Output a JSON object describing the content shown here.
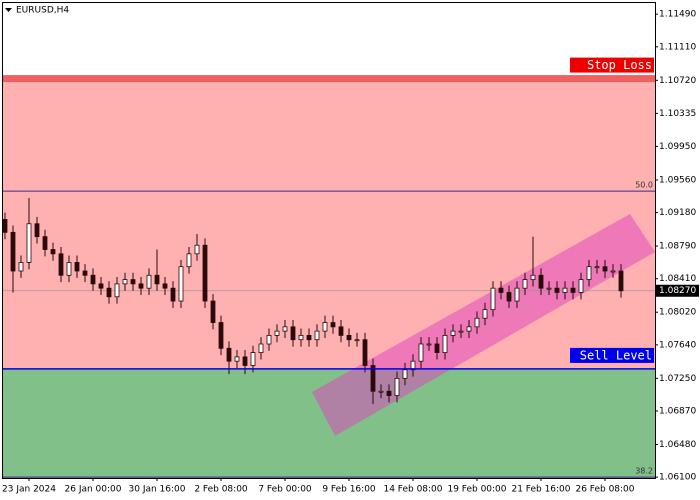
{
  "chart_data": {
    "type": "candlestick",
    "title": "EURUSD,H4",
    "categories": [
      null,
      null,
      null,
      "23 Jan 2024",
      null,
      null,
      null,
      null,
      null,
      null,
      null,
      "26 Jan 00:00",
      null,
      null,
      null,
      null,
      null,
      null,
      null,
      "30 Jan 16:00",
      null,
      null,
      null,
      null,
      null,
      null,
      null,
      "2 Feb 08:00",
      null,
      null,
      null,
      null,
      null,
      null,
      null,
      "7 Feb 00:00",
      null,
      null,
      null,
      null,
      null,
      null,
      null,
      "9 Feb 16:00",
      null,
      null,
      null,
      null,
      null,
      null,
      null,
      "14 Feb 08:00",
      null,
      null,
      null,
      null,
      null,
      null,
      null,
      "19 Feb 00:00",
      null,
      null,
      null,
      null,
      null,
      null,
      null,
      "21 Feb 16:00",
      null,
      null,
      null,
      null,
      null,
      null,
      null,
      "26 Feb 08:00",
      null,
      null
    ],
    "open": [
      1.091,
      1.0895,
      1.085,
      1.086,
      1.0905,
      1.089,
      1.0875,
      1.087,
      1.0845,
      1.086,
      1.085,
      1.0845,
      1.0835,
      1.083,
      1.082,
      1.0835,
      1.084,
      1.0835,
      1.083,
      1.0845,
      1.0835,
      1.083,
      1.0815,
      1.0855,
      1.087,
      1.088,
      1.0815,
      1.079,
      1.076,
      1.0745,
      1.075,
      1.074,
      1.0755,
      1.0765,
      1.0775,
      1.078,
      1.0785,
      1.077,
      1.0775,
      1.077,
      1.078,
      1.079,
      1.0785,
      1.0775,
      1.077,
      1.077,
      1.074,
      1.071,
      1.071,
      1.0705,
      1.0725,
      1.0735,
      1.0745,
      1.0765,
      1.0765,
      1.0755,
      1.0775,
      1.078,
      1.078,
      1.0785,
      1.0795,
      1.0805,
      1.083,
      1.0825,
      1.0815,
      1.083,
      1.084,
      1.0845,
      1.083,
      1.083,
      1.0825,
      1.083,
      1.0825,
      1.084,
      1.0855,
      1.0855,
      1.085,
      1.085
    ],
    "high": [
      1.0918,
      1.0903,
      1.0868,
      1.0935,
      1.0913,
      1.0898,
      1.0883,
      1.0878,
      1.0868,
      1.0868,
      1.0858,
      1.0853,
      1.0843,
      1.0838,
      1.0843,
      1.0848,
      1.0848,
      1.0843,
      1.0853,
      1.0875,
      1.0843,
      1.0838,
      1.0863,
      1.0878,
      1.0893,
      1.0888,
      1.0823,
      1.0798,
      1.0768,
      1.0758,
      1.0758,
      1.0763,
      1.0773,
      1.0783,
      1.0788,
      1.0793,
      1.0793,
      1.0783,
      1.0783,
      1.0788,
      1.0798,
      1.0798,
      1.0793,
      1.0783,
      1.0778,
      1.0778,
      1.0748,
      1.0718,
      1.0718,
      1.0733,
      1.0743,
      1.0753,
      1.0773,
      1.0773,
      1.0773,
      1.0783,
      1.0788,
      1.0788,
      1.0793,
      1.0803,
      1.0813,
      1.0838,
      1.0838,
      1.0833,
      1.0838,
      1.0848,
      1.089,
      1.0853,
      1.0838,
      1.0838,
      1.0838,
      1.0838,
      1.0848,
      1.0863,
      1.0863,
      1.0863,
      1.0858,
      1.0858
    ],
    "low": [
      1.0887,
      1.0825,
      1.0842,
      1.0852,
      1.0882,
      1.0867,
      1.0862,
      1.0837,
      1.0837,
      1.0842,
      1.0837,
      1.0827,
      1.0822,
      1.0812,
      1.0812,
      1.0827,
      1.0827,
      1.0822,
      1.0822,
      1.0827,
      1.0822,
      1.0807,
      1.0807,
      1.0847,
      1.0862,
      1.0807,
      1.0782,
      1.0752,
      1.073,
      1.0737,
      1.073,
      1.0732,
      1.0747,
      1.0757,
      1.0767,
      1.0772,
      1.0762,
      1.0762,
      1.0762,
      1.0762,
      1.0772,
      1.0777,
      1.0767,
      1.0762,
      1.0762,
      1.0732,
      1.0695,
      1.0702,
      1.0697,
      1.0697,
      1.0717,
      1.0727,
      1.0737,
      1.0757,
      1.0747,
      1.0747,
      1.0767,
      1.0772,
      1.0772,
      1.0777,
      1.0787,
      1.0797,
      1.0817,
      1.0807,
      1.0807,
      1.0822,
      1.0832,
      1.0822,
      1.0822,
      1.0817,
      1.0817,
      1.0817,
      1.0817,
      1.0832,
      1.0847,
      1.0842,
      1.0842,
      1.0819
    ],
    "close": [
      1.0895,
      1.085,
      1.086,
      1.0905,
      1.089,
      1.0875,
      1.087,
      1.0845,
      1.086,
      1.085,
      1.0845,
      1.0835,
      1.083,
      1.082,
      1.0835,
      1.084,
      1.0835,
      1.083,
      1.0845,
      1.0835,
      1.083,
      1.0815,
      1.0855,
      1.087,
      1.088,
      1.0815,
      1.079,
      1.076,
      1.0745,
      1.075,
      1.074,
      1.0755,
      1.0765,
      1.0775,
      1.078,
      1.0785,
      1.077,
      1.0775,
      1.077,
      1.078,
      1.079,
      1.0785,
      1.0775,
      1.077,
      1.077,
      1.074,
      1.071,
      1.071,
      1.0705,
      1.0725,
      1.0735,
      1.0745,
      1.0765,
      1.0765,
      1.0755,
      1.0775,
      1.078,
      1.078,
      1.0785,
      1.0795,
      1.0805,
      1.083,
      1.0825,
      1.0815,
      1.083,
      1.084,
      1.0845,
      1.083,
      1.083,
      1.0825,
      1.083,
      1.0825,
      1.084,
      1.0855,
      1.0855,
      1.085,
      1.085,
      1.0827
    ],
    "up_color": "#ffffff",
    "down_color": "#2b0a0a",
    "ylim": [
      1.0609,
      1.1162
    ],
    "yticks": [
      {
        "value": 1.1149,
        "label": "1.11490"
      },
      {
        "value": 1.1111,
        "label": "1.11110"
      },
      {
        "value": 1.1072,
        "label": "1.10720"
      },
      {
        "value": 1.10335,
        "label": "1.10335"
      },
      {
        "value": 1.0995,
        "label": "1.09950"
      },
      {
        "value": 1.0956,
        "label": "1.09560"
      },
      {
        "value": 1.0918,
        "label": "1.09180"
      },
      {
        "value": 1.0879,
        "label": "1.08790"
      },
      {
        "value": 1.0841,
        "label": "1.08410"
      },
      {
        "value": 1.0802,
        "label": "1.08020"
      },
      {
        "value": 1.0764,
        "label": "1.07640"
      },
      {
        "value": 1.0725,
        "label": "1.07250"
      },
      {
        "value": 1.0687,
        "label": "1.06870"
      },
      {
        "value": 1.0648,
        "label": "1.06480"
      },
      {
        "value": 1.061,
        "label": "1.06100"
      }
    ],
    "current_price": {
      "value": 1.0827,
      "label": "1.08270"
    },
    "levels": [
      {
        "name": "Stop Loss",
        "value": 1.1074,
        "color": "#ee0000"
      },
      {
        "name": "Sell Level",
        "value": 1.0736,
        "color": "#0000ee"
      }
    ],
    "fib_levels": [
      {
        "label": "50.0",
        "value": 1.0943
      },
      {
        "label": "38.2",
        "value": 1.061
      }
    ]
  }
}
